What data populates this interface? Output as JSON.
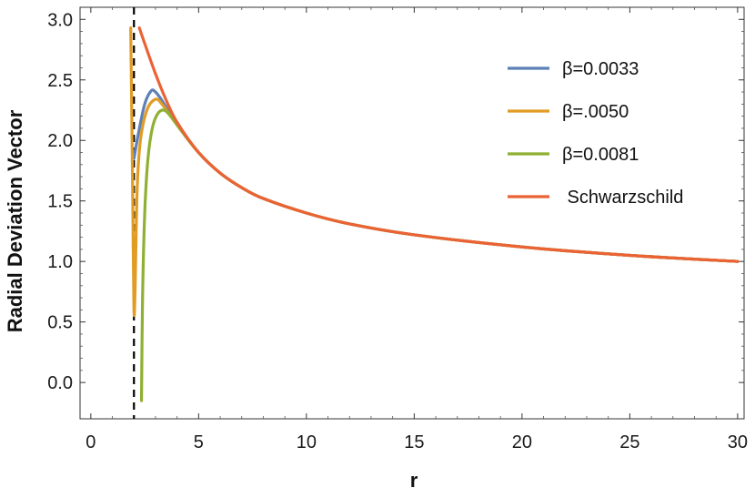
{
  "chart_data": {
    "type": "line",
    "title": "",
    "xlabel": "r",
    "ylabel": "Radial Deviation Vector",
    "xlim": [
      -0.5,
      30.3
    ],
    "ylim": [
      -0.3,
      3.1
    ],
    "x_ticks": [
      0,
      5,
      10,
      15,
      20,
      25,
      30
    ],
    "y_ticks": [
      0.0,
      0.5,
      1.0,
      1.5,
      2.0,
      2.5,
      3.0
    ],
    "x_tick_labels": [
      "0",
      "5",
      "10",
      "15",
      "20",
      "25",
      "30"
    ],
    "y_tick_labels": [
      "0.0",
      "0.5",
      "1.0",
      "1.5",
      "2.0",
      "2.5",
      "3.0"
    ],
    "grid": false,
    "legend_position": "top-right",
    "vertical_reference_line": {
      "x": 2,
      "style": "dashed",
      "color": "#000000"
    },
    "series": [
      {
        "name": "β=0.0033",
        "color": "#5E81B5",
        "points": [
          [
            2.0,
            1.85
          ],
          [
            2.2,
            2.05
          ],
          [
            2.5,
            2.3
          ],
          [
            2.8,
            2.41
          ],
          [
            3.0,
            2.4
          ],
          [
            3.3,
            2.33
          ],
          [
            3.6,
            2.24
          ],
          [
            4.0,
            2.13
          ],
          [
            5.0,
            1.9
          ],
          [
            6.0,
            1.73
          ],
          [
            7.0,
            1.61
          ],
          [
            8.0,
            1.52
          ],
          [
            10.0,
            1.4
          ],
          [
            12.0,
            1.31
          ],
          [
            15.0,
            1.22
          ],
          [
            20.0,
            1.12
          ],
          [
            25.0,
            1.05
          ],
          [
            30.0,
            1.0
          ]
        ]
      },
      {
        "name": "β=.0050",
        "color": "#E19C24",
        "points": [
          [
            1.85,
            2.93
          ],
          [
            1.9,
            2.2
          ],
          [
            1.95,
            1.4
          ],
          [
            2.0,
            0.6
          ],
          [
            2.05,
            0.75
          ],
          [
            2.15,
            1.6
          ],
          [
            2.3,
            2.0
          ],
          [
            2.6,
            2.25
          ],
          [
            3.0,
            2.34
          ],
          [
            3.3,
            2.3
          ],
          [
            3.7,
            2.2
          ],
          [
            4.2,
            2.08
          ],
          [
            5.0,
            1.9
          ],
          [
            6.0,
            1.73
          ],
          [
            7.0,
            1.61
          ],
          [
            8.0,
            1.52
          ],
          [
            10.0,
            1.4
          ],
          [
            12.0,
            1.31
          ],
          [
            15.0,
            1.22
          ],
          [
            20.0,
            1.12
          ],
          [
            25.0,
            1.05
          ],
          [
            30.0,
            1.0
          ]
        ]
      },
      {
        "name": "β=0.0081",
        "color": "#8FB032",
        "points": [
          [
            2.35,
            -0.15
          ],
          [
            2.4,
            0.7
          ],
          [
            2.5,
            1.4
          ],
          [
            2.65,
            1.85
          ],
          [
            2.85,
            2.1
          ],
          [
            3.1,
            2.22
          ],
          [
            3.4,
            2.25
          ],
          [
            3.7,
            2.2
          ],
          [
            4.2,
            2.08
          ],
          [
            5.0,
            1.9
          ],
          [
            6.0,
            1.73
          ],
          [
            7.0,
            1.61
          ],
          [
            8.0,
            1.52
          ],
          [
            10.0,
            1.4
          ],
          [
            12.0,
            1.31
          ],
          [
            15.0,
            1.22
          ],
          [
            20.0,
            1.12
          ],
          [
            25.0,
            1.05
          ],
          [
            30.0,
            1.0
          ]
        ]
      },
      {
        "name": " Schwarzschild",
        "color": "#EB6235",
        "points": [
          [
            2.25,
            2.93
          ],
          [
            2.5,
            2.8
          ],
          [
            3.0,
            2.55
          ],
          [
            3.5,
            2.33
          ],
          [
            4.0,
            2.15
          ],
          [
            5.0,
            1.9
          ],
          [
            6.0,
            1.73
          ],
          [
            7.0,
            1.61
          ],
          [
            8.0,
            1.52
          ],
          [
            10.0,
            1.4
          ],
          [
            12.0,
            1.31
          ],
          [
            15.0,
            1.22
          ],
          [
            20.0,
            1.12
          ],
          [
            25.0,
            1.05
          ],
          [
            30.0,
            1.0
          ]
        ]
      }
    ]
  }
}
